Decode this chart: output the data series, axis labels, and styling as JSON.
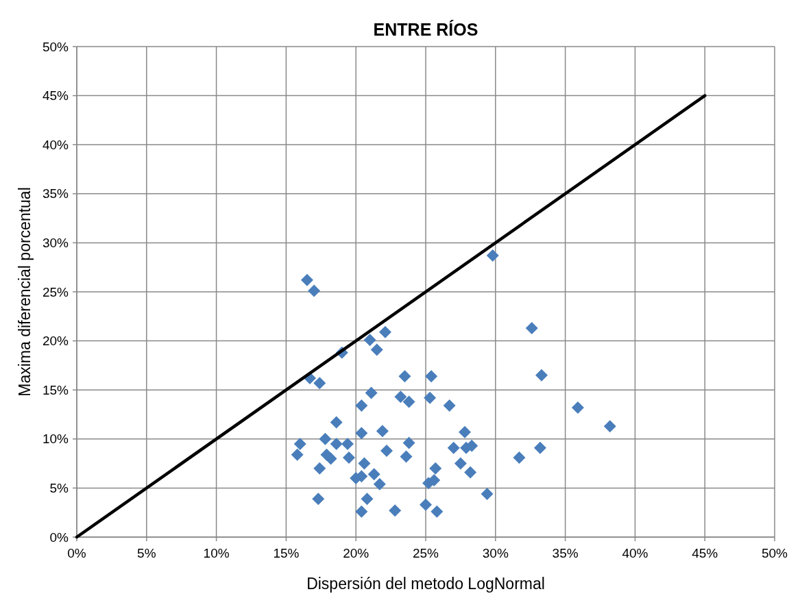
{
  "chart_data": {
    "type": "scatter",
    "title": "ENTRE RÍOS",
    "xlabel": "Dispersión del metodo LogNormal",
    "ylabel": "Maxima diferencial porcentual",
    "xlim": [
      0,
      50
    ],
    "ylim": [
      0,
      50
    ],
    "xticks": [
      {
        "value": 0,
        "label": "0%"
      },
      {
        "value": 5,
        "label": "5%"
      },
      {
        "value": 10,
        "label": "10%"
      },
      {
        "value": 15,
        "label": "15%"
      },
      {
        "value": 20,
        "label": "20%"
      },
      {
        "value": 25,
        "label": "25%"
      },
      {
        "value": 30,
        "label": "30%"
      },
      {
        "value": 35,
        "label": "35%"
      },
      {
        "value": 40,
        "label": "40%"
      },
      {
        "value": 45,
        "label": "45%"
      },
      {
        "value": 50,
        "label": "50%"
      }
    ],
    "yticks": [
      {
        "value": 0,
        "label": "0%"
      },
      {
        "value": 5,
        "label": "5%"
      },
      {
        "value": 10,
        "label": "10%"
      },
      {
        "value": 15,
        "label": "15%"
      },
      {
        "value": 20,
        "label": "20%"
      },
      {
        "value": 25,
        "label": "25%"
      },
      {
        "value": 30,
        "label": "30%"
      },
      {
        "value": 35,
        "label": "35%"
      },
      {
        "value": 40,
        "label": "40%"
      },
      {
        "value": 45,
        "label": "45%"
      },
      {
        "value": 50,
        "label": "50%"
      }
    ],
    "grid": true,
    "series": [
      {
        "marker": "diamond",
        "color": "#4a7ebb",
        "x": [
          16.5,
          17.0,
          29.8,
          32.6,
          22.1,
          21.0,
          19.0,
          21.5,
          16.7,
          17.4,
          23.5,
          25.4,
          33.3,
          21.1,
          23.2,
          23.8,
          25.3,
          26.7,
          20.4,
          35.9,
          38.2,
          18.6,
          20.4,
          21.9,
          27.8,
          16.0,
          17.8,
          18.6,
          19.4,
          23.8,
          27.0,
          27.9,
          28.3,
          33.2,
          31.7,
          15.8,
          17.9,
          18.2,
          19.5,
          22.2,
          23.6,
          17.4,
          20.6,
          20.0,
          20.4,
          21.3,
          21.7,
          25.7,
          25.2,
          25.6,
          27.5,
          28.2,
          17.3,
          20.8,
          29.4,
          20.4,
          22.8,
          25.0,
          25.8
        ],
        "values": [
          26.2,
          25.1,
          28.7,
          21.3,
          20.9,
          20.1,
          18.8,
          19.1,
          16.2,
          15.7,
          16.4,
          16.4,
          16.5,
          14.7,
          14.3,
          13.8,
          14.2,
          13.4,
          13.4,
          13.2,
          11.3,
          11.7,
          10.6,
          10.8,
          10.7,
          9.5,
          10.0,
          9.5,
          9.5,
          9.6,
          9.1,
          9.1,
          9.3,
          9.1,
          8.1,
          8.4,
          8.4,
          8.0,
          8.1,
          8.8,
          8.2,
          7.0,
          7.5,
          6.0,
          6.2,
          6.4,
          5.4,
          7.0,
          5.5,
          5.8,
          7.5,
          6.6,
          3.9,
          3.9,
          4.4,
          2.6,
          2.7,
          3.3,
          2.6
        ]
      },
      {
        "type": "line",
        "marker": "none",
        "color": "#000000",
        "line_style": "solid",
        "x": [
          0,
          45
        ],
        "values": [
          0,
          45
        ]
      }
    ]
  }
}
